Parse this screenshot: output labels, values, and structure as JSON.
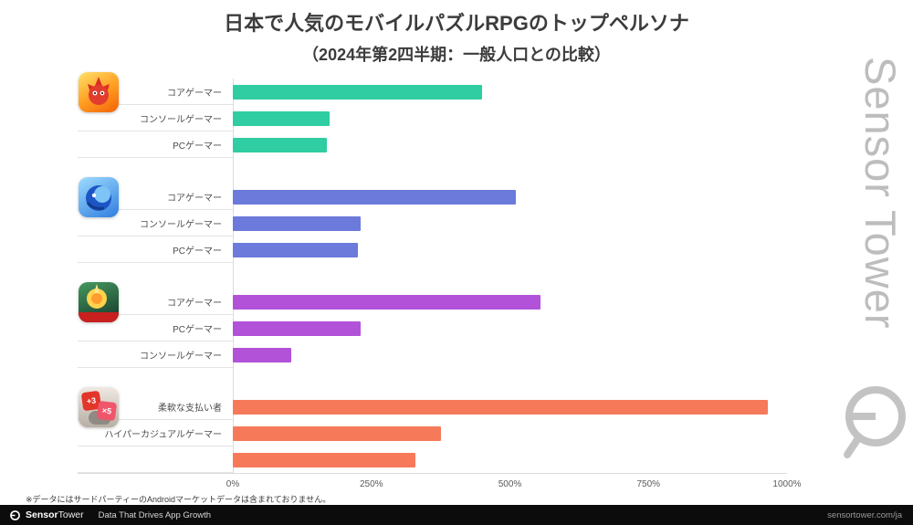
{
  "title": "日本で人気のモバイルパズルRPGのトップペルソナ",
  "subtitle": "（2024年第2四半期：一般人口との比較）",
  "watermark_text": "Sensor Tower",
  "footnote": "※データにはサードパーティーのAndroidマーケットデータは含まれておりません。",
  "footer": {
    "brand_bold": "Sensor",
    "brand_light": "Tower",
    "tagline": "Data That Drives App Growth",
    "url": "sensortower.com/ja"
  },
  "chart_data": {
    "type": "bar",
    "orientation": "horizontal",
    "unit": "%",
    "xlim": [
      0,
      1000
    ],
    "x_ticks": [
      "0%",
      "250%",
      "500%",
      "750%",
      "1000%"
    ],
    "grid": false,
    "legend": "none",
    "groups": [
      {
        "icon": "red-monster-app-icon",
        "color": "#2fcda1",
        "bars": [
          {
            "label": "コアゲーマー",
            "value": 450
          },
          {
            "label": "コンソールゲーマー",
            "value": 175
          },
          {
            "label": "PCゲーマー",
            "value": 170
          }
        ]
      },
      {
        "icon": "blue-dragon-app-icon",
        "color": "#6b7adb",
        "bars": [
          {
            "label": "コアゲーマー",
            "value": 510
          },
          {
            "label": "コンソールゲーマー",
            "value": 230
          },
          {
            "label": "PCゲーマー",
            "value": 225
          }
        ]
      },
      {
        "icon": "anime-battle-app-icon",
        "color": "#b152d8",
        "bars": [
          {
            "label": "コアゲーマー",
            "value": 555
          },
          {
            "label": "PCゲーマー",
            "value": 230
          },
          {
            "label": "コンソールゲーマー",
            "value": 105
          }
        ]
      },
      {
        "icon": "number-puzzle-app-icon",
        "icon_tiles": [
          "+3",
          "×5"
        ],
        "color": "#f67a5a",
        "bars": [
          {
            "label": "柔軟な支払い者",
            "value": 965
          },
          {
            "label": "ハイパーカジュアルゲーマー",
            "value": 375
          },
          {
            "label": "",
            "value": 330
          }
        ]
      }
    ]
  }
}
